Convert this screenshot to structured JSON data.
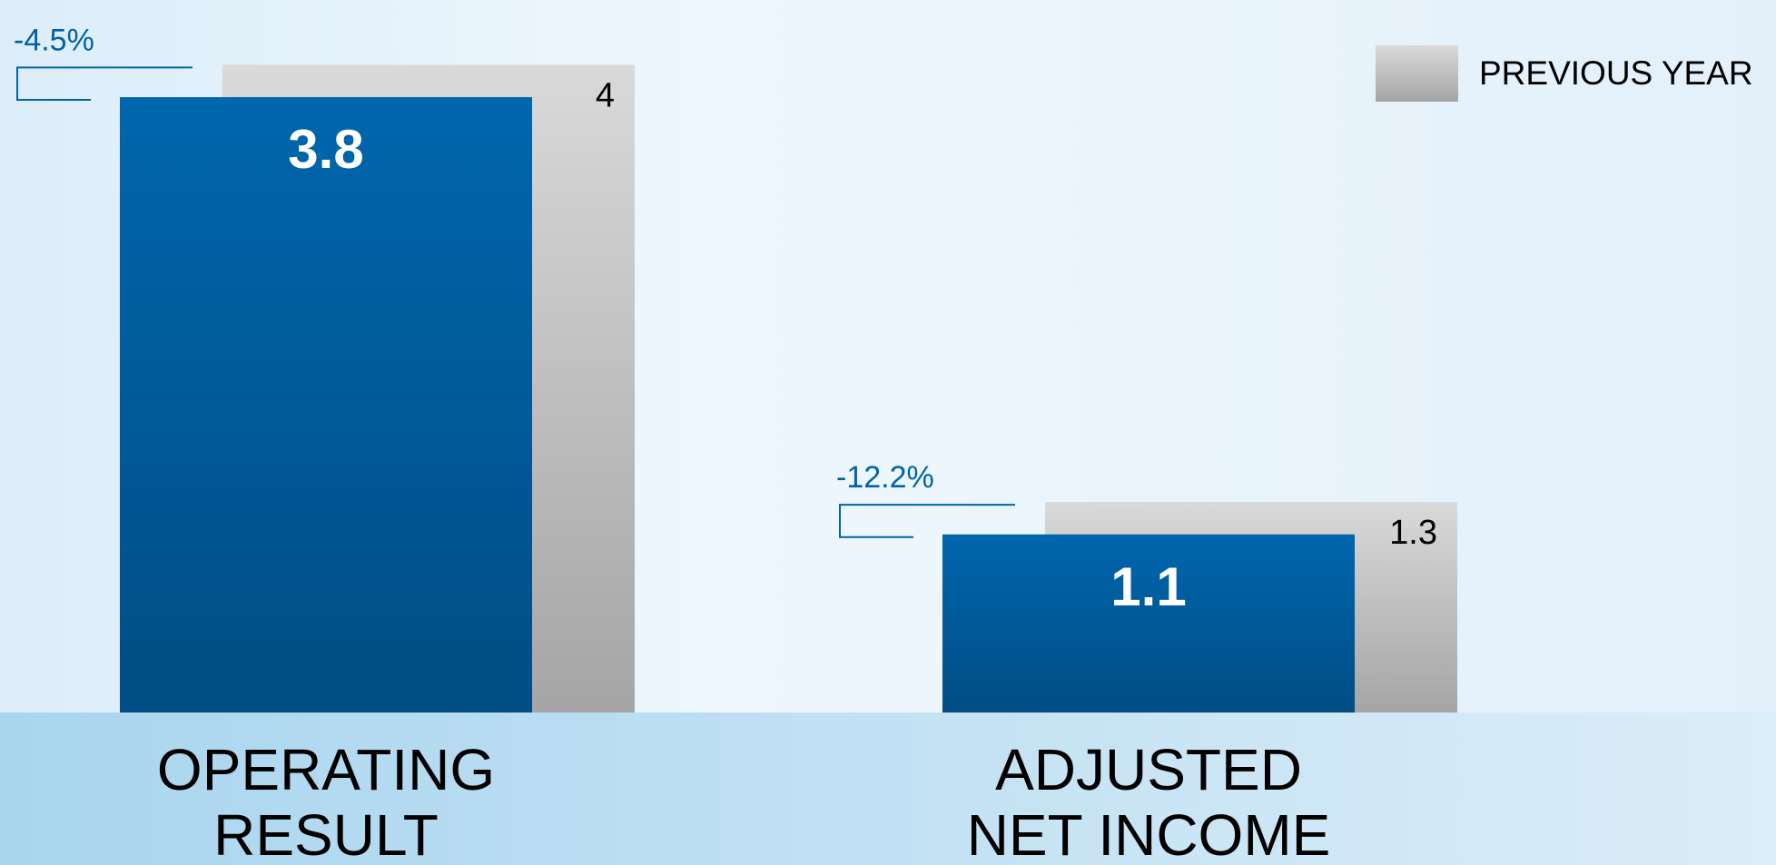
{
  "chart_data": {
    "type": "bar",
    "categories": [
      "OPERATING\nRESULT",
      "ADJUSTED\nNET INCOME"
    ],
    "series": [
      {
        "color": "#0066ad",
        "values": [
          3.8,
          1.1
        ]
      },
      {
        "name": "PREVIOUS YEAR",
        "color": "#d9d9d9",
        "values": [
          4.0,
          1.3
        ]
      }
    ],
    "annotations": [
      "-4.5%",
      "-12.2%"
    ],
    "ylim": [
      0,
      4.4
    ],
    "legend": "top-right"
  }
}
